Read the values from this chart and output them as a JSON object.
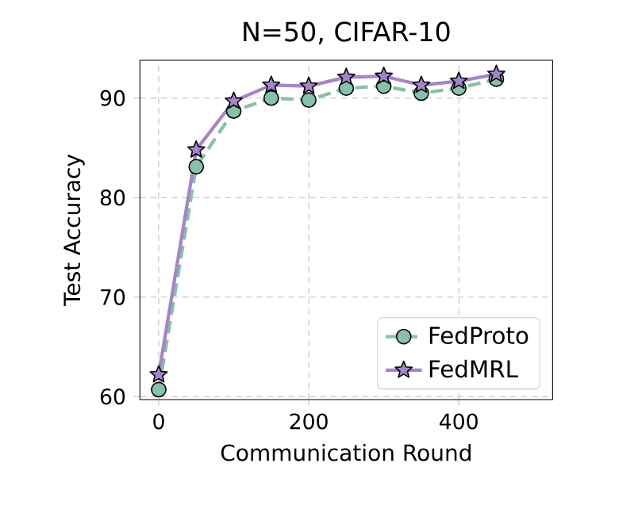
{
  "chart_data": {
    "type": "line",
    "title": "N=50, CIFAR-10",
    "xlabel": "Communication Round",
    "ylabel": "Test Accuracy",
    "xlim": [
      -25,
      525
    ],
    "ylim": [
      59.7,
      93.8
    ],
    "xticks": [
      0,
      200,
      400
    ],
    "yticks": [
      60,
      70,
      80,
      90
    ],
    "grid": true,
    "legend": "bottom right",
    "series": [
      {
        "name": "FedProto",
        "color": "#87c1a9",
        "marker": "circle",
        "line_style": "dashed",
        "x": [
          0,
          50,
          100,
          150,
          200,
          250,
          300,
          350,
          400,
          450
        ],
        "values": [
          60.7,
          83.1,
          88.7,
          90.0,
          89.8,
          91.0,
          91.2,
          90.5,
          91.0,
          91.9
        ]
      },
      {
        "name": "FedMRL",
        "color": "#a585c9",
        "marker": "star",
        "line_style": "solid",
        "x": [
          0,
          50,
          100,
          150,
          200,
          250,
          300,
          350,
          400,
          450
        ],
        "values": [
          62.2,
          84.8,
          89.7,
          91.3,
          91.2,
          92.1,
          92.2,
          91.3,
          91.7,
          92.4
        ]
      }
    ]
  }
}
